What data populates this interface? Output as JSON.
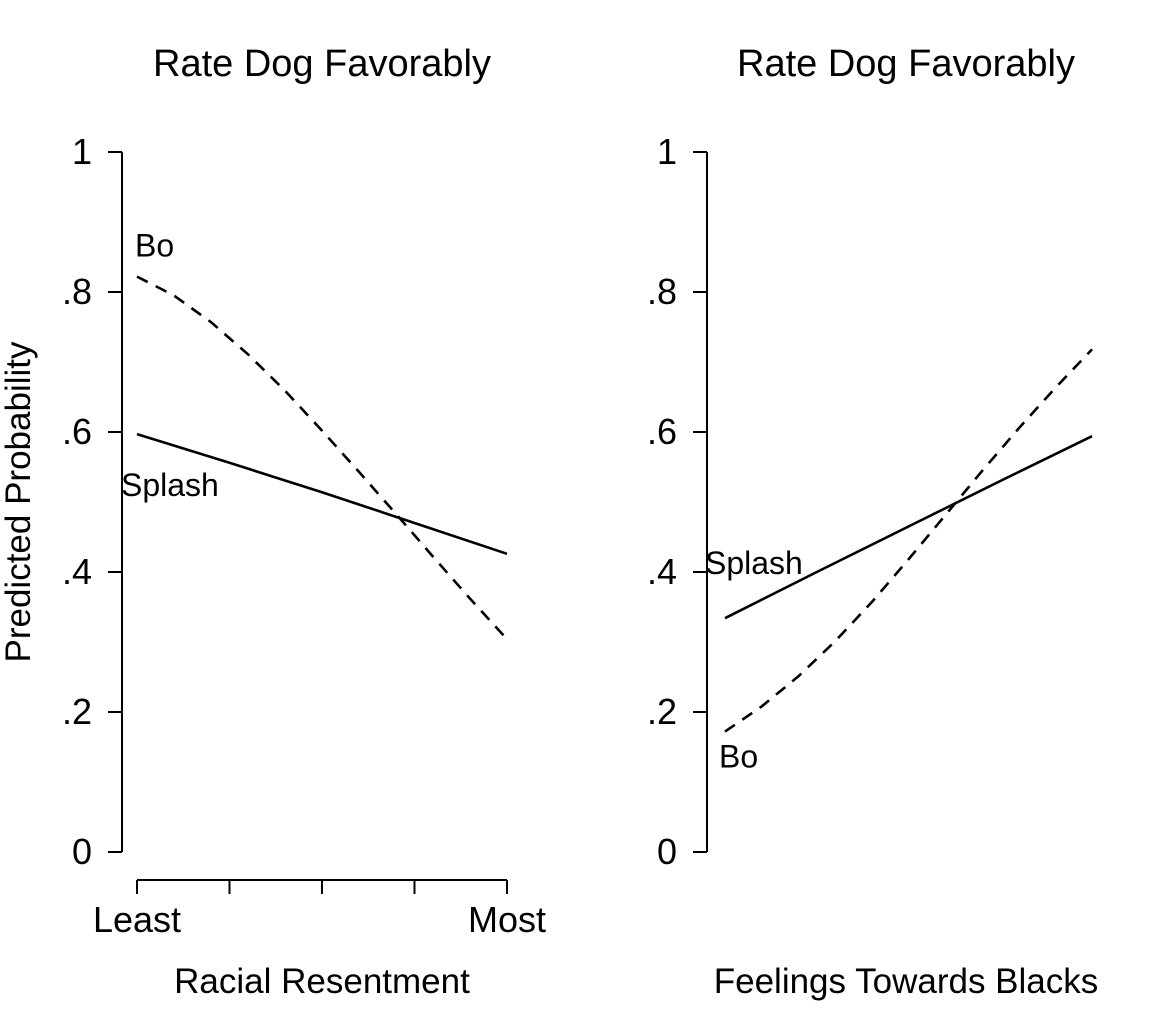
{
  "chart_data": [
    {
      "type": "line",
      "title": "Rate Dog Favorably",
      "xlabel": "Racial Resentment",
      "ylabel": "Predicted Probability",
      "ylim": [
        0,
        1
      ],
      "yticks": [
        0,
        0.2,
        0.4,
        0.6,
        0.8,
        1
      ],
      "ytick_labels": [
        "0",
        ".2",
        ".4",
        ".6",
        ".8",
        "1"
      ],
      "xlim": [
        0,
        1
      ],
      "xticks": [
        0,
        0.25,
        0.5,
        0.75,
        1
      ],
      "xtick_labels": [
        "Least",
        "",
        "",
        "",
        "Most"
      ],
      "series": [
        {
          "name": "Bo",
          "style": "dashed",
          "label_anchor": "start-above",
          "x": [
            0,
            0.1,
            0.2,
            0.3,
            0.4,
            0.5,
            0.6,
            0.7,
            0.8,
            0.9,
            1.0
          ],
          "y": [
            0.822,
            0.795,
            0.757,
            0.711,
            0.659,
            0.602,
            0.543,
            0.483,
            0.422,
            0.362,
            0.304
          ]
        },
        {
          "name": "Splash",
          "style": "solid",
          "label_anchor": "start-below",
          "x": [
            0,
            0.25,
            0.5,
            0.75,
            1.0
          ],
          "y": [
            0.597,
            0.556,
            0.514,
            0.47,
            0.426
          ]
        }
      ]
    },
    {
      "type": "line",
      "title": "Rate Dog Favorably",
      "xlabel": "Feelings Towards Blacks",
      "ylabel": "",
      "ylim": [
        0,
        1
      ],
      "yticks": [
        0,
        0.2,
        0.4,
        0.6,
        0.8,
        1
      ],
      "ytick_labels": [
        "0",
        ".2",
        ".4",
        ".6",
        ".8",
        "1"
      ],
      "xlim": [
        0,
        1
      ],
      "xticks": [],
      "xtick_labels": [],
      "series": [
        {
          "name": "Bo",
          "style": "dashed",
          "label_anchor": "start-below",
          "x": [
            0,
            0.1,
            0.2,
            0.3,
            0.4,
            0.5,
            0.6,
            0.7,
            0.8,
            0.9,
            1.0
          ],
          "y": [
            0.172,
            0.208,
            0.251,
            0.301,
            0.357,
            0.418,
            0.481,
            0.544,
            0.605,
            0.663,
            0.718
          ]
        },
        {
          "name": "Splash",
          "style": "solid",
          "label_anchor": "start-above",
          "x": [
            0,
            0.25,
            0.5,
            0.75,
            1.0
          ],
          "y": [
            0.334,
            0.4,
            0.465,
            0.53,
            0.594
          ]
        }
      ]
    }
  ]
}
